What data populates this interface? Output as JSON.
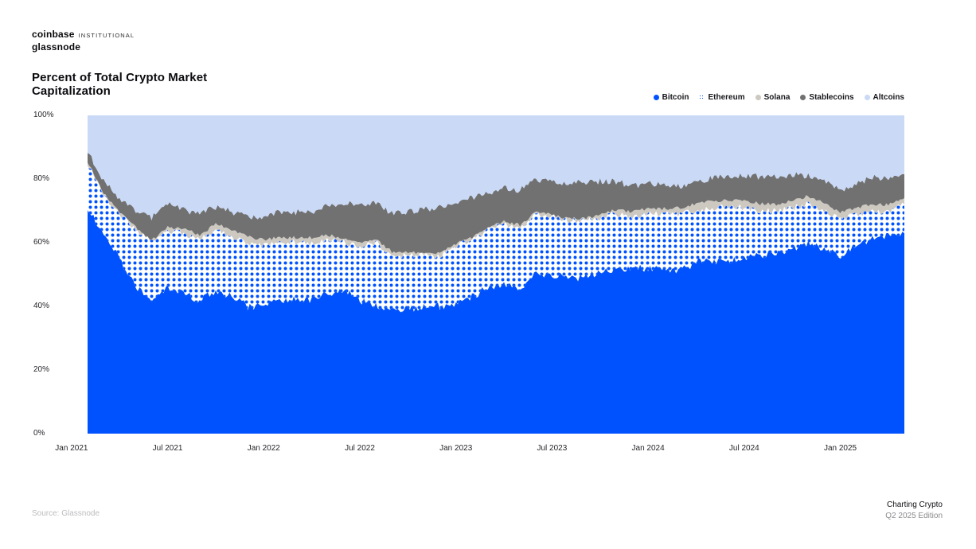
{
  "header": {
    "brand_primary": "coinbase",
    "brand_secondary": "INSTITUTIONAL",
    "brand_sub": "glassnode"
  },
  "title": {
    "lines": [
      "Percent of Total Crypto Market",
      "Capitalization"
    ]
  },
  "legend": [
    {
      "label": "Bitcoin",
      "swatch": "solid",
      "color": "#0052ff"
    },
    {
      "label": "Ethereum",
      "swatch": "dots",
      "color": "#0052ff"
    },
    {
      "label": "Solana",
      "swatch": "solid",
      "color": "#cdc9c1"
    },
    {
      "label": "Stablecoins",
      "swatch": "solid",
      "color": "#717171"
    },
    {
      "label": "Altcoins",
      "swatch": "solid",
      "color": "#c9d9f6"
    }
  ],
  "chart_data": {
    "type": "area",
    "stacked": true,
    "title": "Percent of Total Crypto Market Capitalization",
    "unit": "%",
    "ylim": [
      0,
      100
    ],
    "y_ticks": [
      0,
      20,
      40,
      60,
      80,
      100
    ],
    "x_tick_labels": [
      "Jan 2021",
      "Jul 2021",
      "Jan 2022",
      "Jul 2022",
      "Jan 2023",
      "Jul 2023",
      "Jan 2024",
      "Jul 2024",
      "Jan 2025"
    ],
    "grid": false,
    "legend_position": "top-right",
    "months": [
      "2021-02",
      "2021-03",
      "2021-04",
      "2021-05",
      "2021-06",
      "2021-07",
      "2021-08",
      "2021-09",
      "2021-10",
      "2021-11",
      "2021-12",
      "2022-01",
      "2022-02",
      "2022-03",
      "2022-04",
      "2022-05",
      "2022-06",
      "2022-07",
      "2022-08",
      "2022-09",
      "2022-10",
      "2022-11",
      "2022-12",
      "2023-01",
      "2023-02",
      "2023-03",
      "2023-04",
      "2023-05",
      "2023-06",
      "2023-07",
      "2023-08",
      "2023-09",
      "2023-10",
      "2023-11",
      "2023-12",
      "2024-01",
      "2024-02",
      "2024-03",
      "2024-04",
      "2024-05",
      "2024-06",
      "2024-07",
      "2024-08",
      "2024-09",
      "2024-10",
      "2024-11",
      "2024-12",
      "2025-01",
      "2025-02",
      "2025-03",
      "2025-04",
      "2025-05"
    ],
    "series": [
      {
        "name": "Bitcoin",
        "values": [
          71,
          62,
          55,
          46,
          42,
          46,
          44,
          42,
          45,
          43,
          40,
          40,
          42,
          42,
          42,
          44,
          45,
          42,
          40,
          39,
          39,
          40,
          40,
          41,
          43,
          46,
          47,
          46,
          50,
          50,
          49,
          49,
          51,
          52,
          52,
          52,
          52,
          51,
          54,
          54,
          54,
          55,
          56,
          57,
          58,
          60,
          58,
          56,
          59,
          61,
          62,
          63
        ]
      },
      {
        "name": "Ethereum",
        "values": [
          14,
          13,
          14,
          18,
          18,
          18,
          19,
          19,
          19,
          19,
          20,
          19,
          18,
          18,
          18,
          17,
          15,
          17,
          20,
          17,
          17,
          16,
          16,
          18,
          18,
          18,
          19,
          19,
          19,
          18,
          18,
          18,
          17,
          17,
          16,
          17,
          17,
          18,
          16,
          17,
          17,
          16,
          14,
          13,
          13,
          12,
          12,
          11,
          10,
          9,
          8,
          9
        ]
      },
      {
        "name": "Solana",
        "values": [
          0.3,
          0.4,
          0.5,
          0.8,
          0.8,
          0.8,
          1.2,
          1.5,
          1.8,
          2.2,
          2,
          1.8,
          1.7,
          1.6,
          1.6,
          1.4,
          1.2,
          1.3,
          1.3,
          1.2,
          1.1,
          0.6,
          0.5,
          0.6,
          0.6,
          0.5,
          0.5,
          0.5,
          0.5,
          0.7,
          0.6,
          0.6,
          0.8,
          1.3,
          1.8,
          1.8,
          1.7,
          2,
          2.2,
          2.3,
          2.2,
          2.3,
          2.2,
          2.1,
          2.3,
          2.6,
          2.5,
          2.4,
          2,
          1.9,
          1.9,
          2
        ]
      },
      {
        "name": "Stablecoins",
        "values": [
          3.5,
          4,
          4.5,
          5.5,
          7,
          7.5,
          6,
          6.5,
          5.5,
          5.5,
          6.5,
          7,
          8,
          8,
          8,
          9.5,
          11,
          12,
          11,
          12,
          12.5,
          14,
          14.5,
          13,
          12.5,
          11,
          10.5,
          11,
          10.5,
          10.5,
          11,
          11.5,
          10.5,
          9,
          8,
          8,
          7.5,
          6.5,
          7,
          7,
          7.5,
          7.5,
          8.5,
          8.5,
          8,
          6.5,
          7,
          7,
          7.5,
          8.5,
          8.5,
          7.5
        ]
      },
      {
        "name": "Altcoins",
        "values": [
          11.2,
          20.6,
          26,
          29.7,
          32.2,
          27.7,
          29.8,
          31,
          28.7,
          30.3,
          31.5,
          32.2,
          30.3,
          30.4,
          30.4,
          28.1,
          27.8,
          27.7,
          27.7,
          30.8,
          30.4,
          29.4,
          29,
          27.4,
          25.9,
          24.5,
          23,
          23.5,
          20,
          20.8,
          21.4,
          20.9,
          20.7,
          20.7,
          22.2,
          21.2,
          21.8,
          22.5,
          20.8,
          19.7,
          19.3,
          19.2,
          19.3,
          19.4,
          18.7,
          18.9,
          20.5,
          23.6,
          21.5,
          19.6,
          19.6,
          18.5
        ]
      }
    ],
    "colors": {
      "bitcoin": "#0052ff",
      "ethereum_dot": "#0052ff",
      "ethereum_bg": "#ffffff",
      "solana": "#cdc9c1",
      "stablecoins": "#717171",
      "altcoins": "#c9d9f6"
    }
  },
  "footer": {
    "source": "Source: Glassnode",
    "edition_line1": "Charting Crypto",
    "edition_line2": "Q2 2025 Edition"
  }
}
